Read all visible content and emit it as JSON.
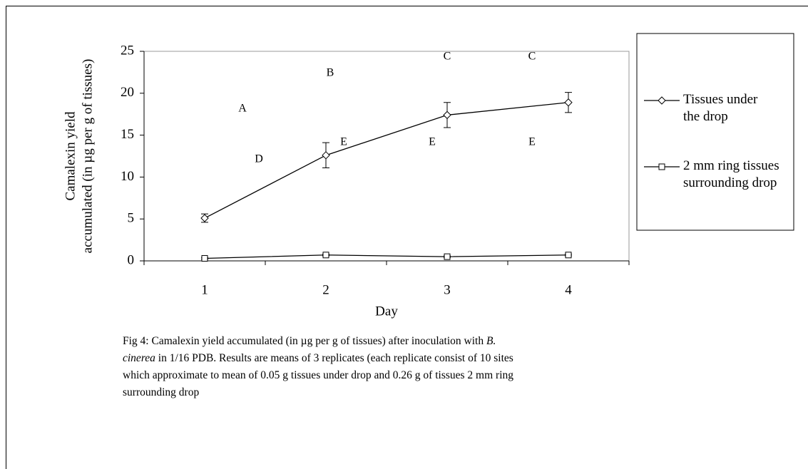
{
  "chart_data": {
    "type": "line",
    "categories": [
      "1",
      "2",
      "3",
      "4"
    ],
    "series": [
      {
        "name": "Tissues under the drop",
        "color": "#000000",
        "marker": "diamond",
        "values": [
          5.1,
          12.6,
          17.4,
          18.9
        ],
        "errors": [
          0.5,
          1.5,
          1.5,
          1.2
        ]
      },
      {
        "name": "2 mm ring tissues surrounding drop",
        "color": "#000000",
        "marker": "square",
        "values": [
          0.3,
          0.7,
          0.5,
          0.7
        ],
        "errors": [
          0.1,
          0.1,
          0.1,
          0.1
        ]
      }
    ],
    "ylim": [
      0,
      25
    ],
    "yticks": [
      0,
      5,
      10,
      15,
      20,
      25
    ],
    "xlabel": "Day",
    "ylabel": [
      "Camalexin yield",
      "accumulated (in µg per g of tissues)"
    ],
    "annotations": [
      "A",
      "B",
      "C",
      "C",
      "D",
      "E",
      "E",
      "E"
    ],
    "legend": "right",
    "caption": [
      "Fig 4: Camalexin yield accumulated (in µg per g of tissues) after inoculation with ",
      "B. cinerea",
      "  in 1/16 PDB. Results are means of 3 replicates (each replicate consist of 10 sites which approximate to mean of 0.05 g tissues under drop and 0.26 g of tissues 2 mm ring surrounding drop"
    ]
  }
}
